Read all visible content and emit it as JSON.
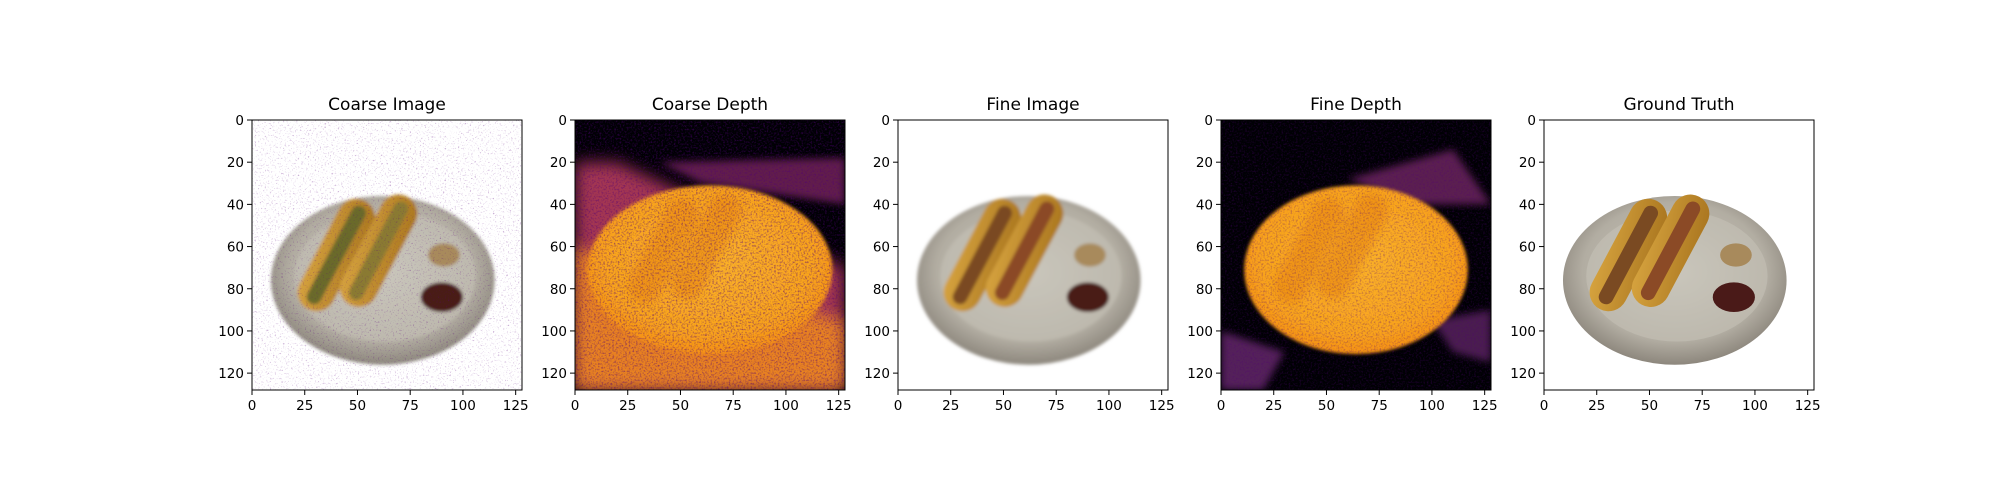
{
  "chart_data": [
    {
      "type": "image",
      "title": "Coarse Image",
      "content": "plate",
      "style": "coarse",
      "xlim": [
        0,
        128
      ],
      "ylim": [
        128,
        0
      ],
      "xticks": [
        0,
        25,
        50,
        75,
        100,
        125
      ],
      "yticks": [
        0,
        20,
        40,
        60,
        80,
        100,
        120
      ],
      "grid": false
    },
    {
      "type": "heatmap",
      "title": "Coarse Depth",
      "content": "depth",
      "style": "coarse",
      "colormap": "inferno",
      "xlim": [
        0,
        128
      ],
      "ylim": [
        128,
        0
      ],
      "xticks": [
        0,
        25,
        50,
        75,
        100,
        125
      ],
      "yticks": [
        0,
        20,
        40,
        60,
        80,
        100,
        120
      ],
      "grid": false
    },
    {
      "type": "image",
      "title": "Fine Image",
      "content": "plate",
      "style": "fine",
      "xlim": [
        0,
        128
      ],
      "ylim": [
        128,
        0
      ],
      "xticks": [
        0,
        25,
        50,
        75,
        100,
        125
      ],
      "yticks": [
        0,
        20,
        40,
        60,
        80,
        100,
        120
      ],
      "grid": false
    },
    {
      "type": "heatmap",
      "title": "Fine Depth",
      "content": "depth",
      "style": "fine",
      "colormap": "inferno",
      "xlim": [
        0,
        128
      ],
      "ylim": [
        128,
        0
      ],
      "xticks": [
        0,
        25,
        50,
        75,
        100,
        125
      ],
      "yticks": [
        0,
        20,
        40,
        60,
        80,
        100,
        120
      ],
      "grid": false
    },
    {
      "type": "image",
      "title": "Ground Truth",
      "content": "plate",
      "style": "truth",
      "xlim": [
        0,
        128
      ],
      "ylim": [
        128,
        0
      ],
      "xticks": [
        0,
        25,
        50,
        75,
        100,
        125
      ],
      "yticks": [
        0,
        20,
        40,
        60,
        80,
        100,
        120
      ],
      "grid": false
    }
  ]
}
